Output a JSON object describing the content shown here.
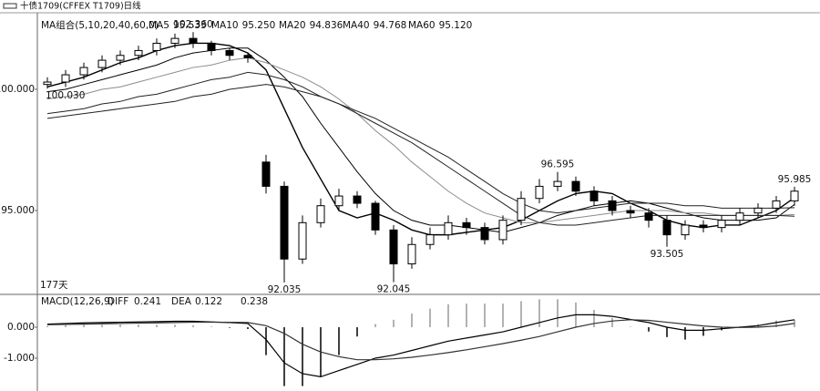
{
  "window_title": "十债1709(CFFEX T1709)日线",
  "chart_data": [
    {
      "type": "candlestick",
      "legend_title": "MA组合(5,10,20,40,60,0)",
      "period_label": "177天",
      "up_color": "#ffffff",
      "down_color": "#000000",
      "open": [
        100.2,
        100.3,
        100.6,
        100.9,
        101.2,
        101.4,
        101.6,
        101.9,
        102.1,
        101.9,
        101.6,
        101.4,
        97.0,
        96.0,
        93.0,
        94.5,
        95.2,
        95.6,
        95.3,
        94.2,
        92.8,
        93.6,
        94.0,
        94.5,
        94.3,
        93.8,
        94.6,
        95.5,
        96.0,
        96.2,
        95.8,
        95.4,
        95.0,
        94.9,
        94.6,
        94.0,
        94.4,
        94.3,
        94.6,
        94.9,
        95.1,
        95.4
      ],
      "high": [
        100.5,
        100.8,
        101.1,
        101.4,
        101.6,
        101.8,
        102.1,
        102.3,
        102.36,
        102.0,
        101.7,
        101.5,
        97.3,
        96.2,
        94.8,
        95.5,
        95.9,
        95.8,
        95.4,
        94.4,
        93.9,
        94.3,
        94.8,
        94.7,
        94.5,
        94.8,
        95.8,
        96.3,
        96.595,
        96.4,
        96.0,
        95.6,
        95.2,
        95.1,
        94.8,
        94.6,
        94.6,
        94.8,
        95.1,
        95.3,
        95.6,
        95.985
      ],
      "low": [
        100.03,
        100.1,
        100.4,
        100.7,
        101.0,
        101.2,
        101.4,
        101.7,
        101.7,
        101.4,
        101.2,
        101.1,
        95.7,
        92.035,
        92.8,
        94.3,
        95.0,
        95.1,
        94.0,
        92.045,
        92.6,
        93.4,
        93.8,
        94.0,
        93.6,
        93.6,
        94.4,
        95.3,
        95.8,
        95.6,
        95.2,
        94.8,
        94.7,
        94.3,
        93.505,
        93.8,
        94.1,
        94.1,
        94.4,
        94.7,
        94.9,
        95.2
      ],
      "close": [
        100.3,
        100.6,
        100.9,
        101.2,
        101.4,
        101.6,
        101.9,
        102.1,
        101.9,
        101.6,
        101.4,
        101.3,
        96.0,
        93.0,
        94.5,
        95.2,
        95.6,
        95.3,
        94.2,
        92.8,
        93.6,
        94.0,
        94.5,
        94.3,
        93.8,
        94.6,
        95.5,
        96.0,
        96.2,
        95.8,
        95.4,
        95.0,
        94.9,
        94.6,
        94.0,
        94.4,
        94.3,
        94.6,
        94.9,
        95.1,
        95.4,
        95.8
      ],
      "high_labels": [
        null,
        null,
        null,
        null,
        null,
        null,
        null,
        null,
        "102.360",
        null,
        null,
        null,
        null,
        null,
        null,
        null,
        null,
        null,
        null,
        null,
        null,
        null,
        null,
        null,
        null,
        null,
        null,
        null,
        "96.595",
        null,
        null,
        null,
        null,
        null,
        null,
        null,
        null,
        null,
        null,
        null,
        null,
        "95.985"
      ],
      "low_labels": [
        "100.030",
        null,
        null,
        null,
        null,
        null,
        null,
        null,
        null,
        null,
        null,
        null,
        null,
        "92.035",
        null,
        null,
        null,
        null,
        null,
        "92.045",
        null,
        null,
        null,
        null,
        null,
        null,
        null,
        null,
        null,
        null,
        null,
        null,
        null,
        null,
        "93.505",
        null,
        null,
        null,
        null,
        null,
        null,
        null
      ],
      "series": [
        {
          "name": "MA5",
          "color": "#000000",
          "width": 1.4,
          "legend_value": 95.533,
          "values": [
            100.1,
            100.3,
            100.5,
            100.8,
            101.1,
            101.3,
            101.6,
            101.8,
            101.9,
            101.9,
            101.8,
            101.5,
            100.8,
            99.2,
            97.6,
            96.3,
            95.0,
            94.7,
            94.9,
            94.6,
            94.2,
            94.0,
            94.0,
            94.1,
            94.2,
            94.3,
            94.6,
            95.0,
            95.4,
            95.7,
            95.8,
            95.7,
            95.3,
            95.0,
            94.6,
            94.4,
            94.3,
            94.4,
            94.4,
            94.7,
            95.0,
            95.533
          ]
        },
        {
          "name": "MA10",
          "color": "#000000",
          "width": 1,
          "legend_value": {
            "value": 95.25,
            "label": "95.250"
          },
          "values": [
            99.9,
            100.0,
            100.2,
            100.4,
            100.6,
            100.8,
            101.0,
            101.3,
            101.5,
            101.6,
            101.7,
            101.7,
            101.2,
            100.5,
            99.7,
            98.6,
            97.6,
            96.6,
            95.7,
            95.0,
            94.6,
            94.4,
            94.4,
            94.3,
            94.2,
            94.1,
            94.3,
            94.5,
            94.8,
            95.0,
            95.2,
            95.3,
            95.4,
            95.3,
            95.1,
            94.9,
            94.7,
            94.6,
            94.6,
            94.6,
            94.7,
            95.25
          ]
        },
        {
          "name": "MA20",
          "color": "#8c8c8c",
          "width": 1,
          "legend_value": 94.836,
          "values": [
            99.6,
            99.7,
            99.8,
            100.0,
            100.1,
            100.3,
            100.5,
            100.7,
            100.9,
            101.0,
            101.2,
            101.3,
            101.1,
            100.8,
            100.5,
            100.1,
            99.6,
            99.0,
            98.3,
            97.7,
            97.0,
            96.4,
            95.8,
            95.3,
            94.9,
            94.7,
            94.5,
            94.5,
            94.6,
            94.7,
            94.8,
            94.9,
            95.0,
            95.0,
            95.0,
            94.9,
            94.9,
            94.8,
            94.8,
            94.8,
            94.8,
            94.836
          ]
        },
        {
          "name": "MA40",
          "color": "#222222",
          "width": 1,
          "legend_value": 94.768,
          "values": [
            99.0,
            99.1,
            99.2,
            99.4,
            99.5,
            99.7,
            99.8,
            100.0,
            100.2,
            100.4,
            100.5,
            100.7,
            100.6,
            100.4,
            100.1,
            99.7,
            99.4,
            99.0,
            98.6,
            98.2,
            97.8,
            97.3,
            96.8,
            96.3,
            95.8,
            95.3,
            94.8,
            94.5,
            94.4,
            94.4,
            94.5,
            94.6,
            94.7,
            94.8,
            94.8,
            94.8,
            94.8,
            94.8,
            94.8,
            94.8,
            94.8,
            94.768
          ]
        },
        {
          "name": "MA60",
          "color": "#222222",
          "width": 1,
          "legend_value": {
            "value": 95.12,
            "label": "95.120"
          },
          "values": [
            98.8,
            98.9,
            99.0,
            99.1,
            99.2,
            99.3,
            99.4,
            99.5,
            99.7,
            99.8,
            100.0,
            100.1,
            100.2,
            100.1,
            99.9,
            99.7,
            99.4,
            99.1,
            98.8,
            98.4,
            98.0,
            97.6,
            97.2,
            96.7,
            96.2,
            95.7,
            95.3,
            95.0,
            94.9,
            95.0,
            95.1,
            95.2,
            95.3,
            95.3,
            95.3,
            95.2,
            95.2,
            95.1,
            95.1,
            95.1,
            95.1,
            95.12
          ]
        }
      ],
      "ylim": [
        91.58,
        103.12
      ],
      "yticks": [
        {
          "value": 100,
          "label": "100.000"
        },
        {
          "value": 95,
          "label": "95.000"
        }
      ]
    },
    {
      "type": "macd",
      "title": "MACD(12,26,9)",
      "series": [
        {
          "name": "DIFF",
          "kind": "line",
          "color": "#000000",
          "values": [
            0.1,
            0.12,
            0.14,
            0.15,
            0.16,
            0.17,
            0.18,
            0.19,
            0.19,
            0.17,
            0.15,
            0.12,
            -0.4,
            -1.15,
            -1.5,
            -1.6,
            -1.4,
            -1.2,
            -1.0,
            -0.9,
            -0.75,
            -0.6,
            -0.45,
            -0.35,
            -0.25,
            -0.15,
            0.0,
            0.15,
            0.3,
            0.4,
            0.4,
            0.35,
            0.25,
            0.15,
            0.0,
            -0.1,
            -0.1,
            -0.05,
            0.0,
            0.05,
            0.15,
            0.241
          ]
        },
        {
          "name": "DEA",
          "kind": "line",
          "color": "#333333",
          "values": [
            0.08,
            0.09,
            0.1,
            0.11,
            0.12,
            0.13,
            0.14,
            0.15,
            0.16,
            0.16,
            0.16,
            0.15,
            0.05,
            -0.2,
            -0.55,
            -0.8,
            -0.95,
            -1.05,
            -1.05,
            -1.02,
            -0.97,
            -0.9,
            -0.82,
            -0.73,
            -0.63,
            -0.53,
            -0.42,
            -0.3,
            -0.15,
            0.0,
            0.12,
            0.2,
            0.24,
            0.22,
            0.16,
            0.1,
            0.04,
            0.0,
            -0.01,
            0.0,
            0.04,
            0.122
          ]
        },
        {
          "kind": "bar",
          "color": "#999999",
          "negative_color": "#000000",
          "values": [
            0.04,
            0.06,
            0.08,
            0.08,
            0.08,
            0.08,
            0.08,
            0.08,
            0.06,
            0.02,
            -0.02,
            -0.06,
            -0.9,
            -1.9,
            -1.9,
            -1.6,
            -0.9,
            -0.3,
            0.1,
            0.24,
            0.44,
            0.6,
            0.74,
            0.76,
            0.76,
            0.76,
            0.84,
            0.9,
            0.9,
            0.8,
            0.56,
            0.3,
            0.02,
            -0.14,
            -0.32,
            -0.4,
            -0.28,
            -0.1,
            0.02,
            0.1,
            0.22,
            0.238
          ]
        }
      ],
      "ylim": [
        -2.03,
        1.0
      ],
      "yticks": [
        {
          "value": 0,
          "label": "0.000"
        },
        {
          "value": -1,
          "label": "-1.000"
        }
      ]
    }
  ]
}
